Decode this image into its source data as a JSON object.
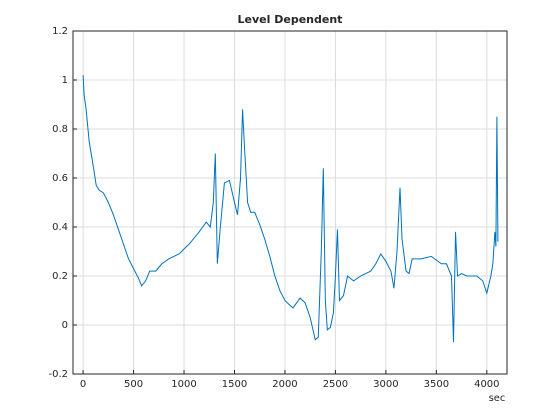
{
  "chart_data": {
    "type": "line",
    "title": "Level Dependent",
    "x_label": "sec",
    "x": [
      0,
      10,
      30,
      60,
      100,
      130,
      160,
      200,
      250,
      300,
      350,
      400,
      450,
      500,
      550,
      580,
      620,
      660,
      720,
      780,
      850,
      950,
      1050,
      1150,
      1220,
      1260,
      1290,
      1310,
      1330,
      1360,
      1400,
      1450,
      1500,
      1530,
      1560,
      1580,
      1600,
      1630,
      1660,
      1700,
      1750,
      1800,
      1850,
      1900,
      1950,
      2000,
      2050,
      2080,
      2150,
      2200,
      2250,
      2300,
      2330,
      2360,
      2380,
      2400,
      2420,
      2450,
      2480,
      2500,
      2520,
      2540,
      2580,
      2620,
      2680,
      2750,
      2850,
      2900,
      2950,
      3000,
      3050,
      3080,
      3110,
      3140,
      3160,
      3200,
      3230,
      3260,
      3350,
      3450,
      3550,
      3600,
      3650,
      3670,
      3690,
      3710,
      3750,
      3800,
      3900,
      3960,
      4000,
      4040,
      4060,
      4080,
      4090,
      4100,
      4110
    ],
    "series": [
      {
        "name": "Level Dependent",
        "color": "#0072bd",
        "values": [
          1.02,
          0.94,
          0.88,
          0.75,
          0.65,
          0.57,
          0.55,
          0.54,
          0.5,
          0.45,
          0.39,
          0.33,
          0.27,
          0.23,
          0.19,
          0.16,
          0.18,
          0.22,
          0.22,
          0.25,
          0.27,
          0.29,
          0.33,
          0.38,
          0.42,
          0.4,
          0.5,
          0.7,
          0.25,
          0.4,
          0.58,
          0.59,
          0.5,
          0.45,
          0.6,
          0.88,
          0.72,
          0.5,
          0.46,
          0.46,
          0.41,
          0.35,
          0.28,
          0.2,
          0.14,
          0.1,
          0.08,
          0.07,
          0.11,
          0.09,
          0.03,
          -0.06,
          -0.05,
          0.3,
          0.64,
          0.1,
          -0.02,
          -0.01,
          0.05,
          0.2,
          0.39,
          0.1,
          0.12,
          0.2,
          0.18,
          0.2,
          0.22,
          0.25,
          0.29,
          0.26,
          0.22,
          0.15,
          0.3,
          0.56,
          0.35,
          0.22,
          0.21,
          0.27,
          0.27,
          0.28,
          0.25,
          0.25,
          0.2,
          -0.07,
          0.38,
          0.2,
          0.21,
          0.2,
          0.2,
          0.18,
          0.13,
          0.2,
          0.25,
          0.38,
          0.32,
          0.85,
          0.34
        ]
      }
    ],
    "xlim": [
      -100,
      4200
    ],
    "xticks": [
      0,
      500,
      1000,
      1500,
      2000,
      2500,
      3000,
      3500,
      4000
    ],
    "ylim": [
      -0.2,
      1.2
    ],
    "yticks": [
      -0.2,
      0,
      0.2,
      0.4,
      0.6,
      0.8,
      1,
      1.2
    ],
    "grid": true
  }
}
